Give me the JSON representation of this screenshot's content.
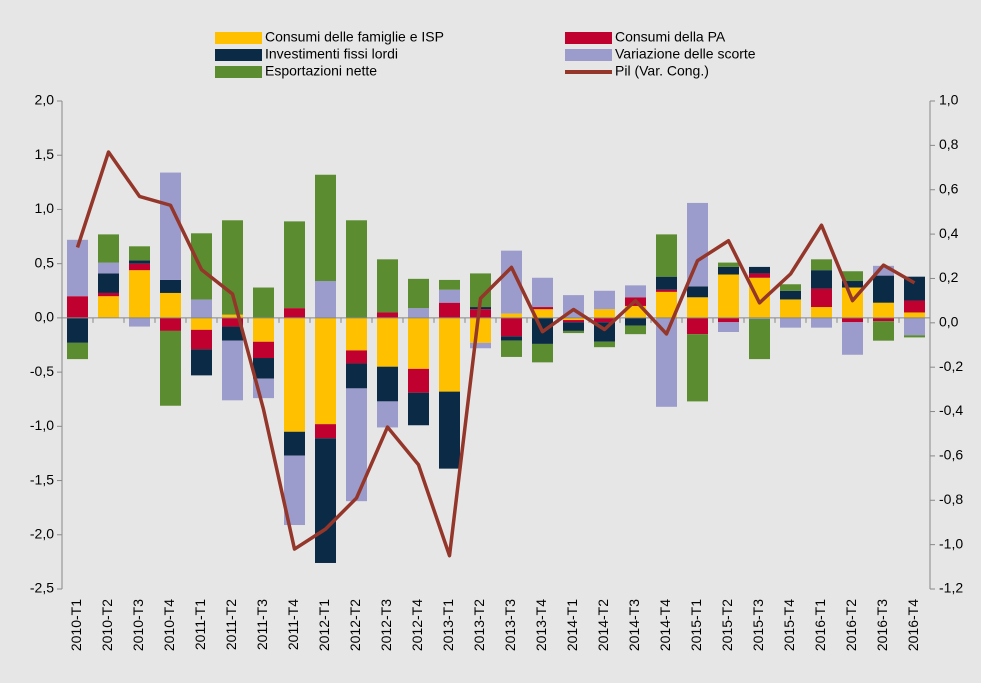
{
  "chart_data": {
    "type": "bar",
    "categories": [
      "2010-T1",
      "2010-T2",
      "2010-T3",
      "2010-T4",
      "2011-T1",
      "2011-T2",
      "2011-T3",
      "2011-T4",
      "2012-T1",
      "2012-T2",
      "2012-T3",
      "2012-T4",
      "2013-T1",
      "2013-T2",
      "2013-T3",
      "2013-T4",
      "2014-T1",
      "2014-T2",
      "2014-T3",
      "2014-T4",
      "2015-T1",
      "2015-T2",
      "2015-T3",
      "2015-T4",
      "2016-T1",
      "2016-T2",
      "2016-T3",
      "2016-T4"
    ],
    "series": [
      {
        "name": "Consumi delle famiglie e ISP",
        "color": "#ffc000",
        "values": [
          0,
          0.2,
          0.44,
          0.23,
          -0.11,
          0.03,
          -0.22,
          -1.05,
          -0.98,
          -0.3,
          -0.45,
          -0.47,
          -0.68,
          -0.23,
          0.04,
          0.08,
          -0.02,
          0.08,
          0.11,
          0.24,
          0.19,
          0.4,
          0.37,
          0.17,
          0.1,
          0.28,
          0.14,
          0.05
        ]
      },
      {
        "name": "Consumi della PA",
        "color": "#c0002f",
        "values": [
          0.2,
          0.03,
          0.06,
          -0.12,
          -0.18,
          -0.08,
          -0.15,
          0.09,
          -0.13,
          -0.12,
          0.05,
          -0.22,
          0.14,
          0.08,
          -0.17,
          0.02,
          -0.02,
          -0.04,
          0.08,
          0.02,
          -0.15,
          -0.04,
          0.04,
          0,
          0.17,
          -0.04,
          -0.03,
          0.11
        ]
      },
      {
        "name": "Investimenti fissi lordi",
        "color": "#0b2a45",
        "values": [
          -0.23,
          0.18,
          0.03,
          0.12,
          -0.24,
          -0.13,
          -0.19,
          -0.22,
          -1.15,
          -0.23,
          -0.32,
          -0.3,
          -0.71,
          0.02,
          -0.04,
          -0.24,
          -0.08,
          -0.18,
          -0.07,
          0.12,
          0.1,
          0.07,
          0.06,
          0.08,
          0.17,
          0.06,
          0.25,
          0.22
        ]
      },
      {
        "name": "Variazione delle scorte",
        "color": "#9b9bcc",
        "values": [
          0.52,
          0.1,
          -0.08,
          0.99,
          0.17,
          -0.55,
          -0.18,
          -0.64,
          0.34,
          -1.04,
          -0.24,
          0.09,
          0.12,
          -0.05,
          0.58,
          0.27,
          0.21,
          0.17,
          0.11,
          -0.82,
          0.77,
          -0.09,
          -0.01,
          -0.09,
          -0.09,
          -0.3,
          0.09,
          -0.16
        ]
      },
      {
        "name": "Esportazioni nette",
        "color": "#5b8c2f",
        "values": [
          -0.15,
          0.26,
          0.13,
          -0.69,
          0.61,
          0.87,
          0.28,
          0.8,
          0.98,
          0.9,
          0.49,
          0.27,
          0.09,
          0.31,
          -0.15,
          -0.17,
          -0.02,
          -0.05,
          -0.08,
          0.39,
          -0.62,
          0.04,
          -0.37,
          0.06,
          0.1,
          0.09,
          -0.18,
          -0.02
        ]
      },
      {
        "name": "Pil (Var. Cong.)",
        "color": "#94362a",
        "axis": "y2",
        "type": "line",
        "values": [
          0.34,
          0.77,
          0.57,
          0.53,
          0.24,
          0.13,
          -0.39,
          -1.02,
          -0.93,
          -0.79,
          -0.47,
          -0.64,
          -1.05,
          0.11,
          0.25,
          -0.04,
          0.06,
          -0.03,
          0.1,
          -0.05,
          0.28,
          0.37,
          0.09,
          0.22,
          0.44,
          0.1,
          0.26,
          0.18
        ]
      }
    ],
    "ylim": [
      -2.5,
      2.0
    ],
    "yticks": [
      {
        "value": 2.0,
        "label": "2,0"
      },
      {
        "value": 1.5,
        "label": "1,5"
      },
      {
        "value": 1.0,
        "label": "1,0"
      },
      {
        "value": 0.5,
        "label": "0,5"
      },
      {
        "value": 0,
        "label": "0,0"
      },
      {
        "value": -0.5,
        "label": "-0,5"
      },
      {
        "value": -1.0,
        "label": "-1,0"
      },
      {
        "value": -1.5,
        "label": "-1,5"
      },
      {
        "value": -2.0,
        "label": "-2,0"
      },
      {
        "value": -2.5,
        "label": "-2,5"
      }
    ],
    "y2lim": [
      -1.2,
      1.0
    ],
    "y2ticks": [
      {
        "value": 1.0,
        "label": "1,0"
      },
      {
        "value": 0.8,
        "label": "0,8"
      },
      {
        "value": 0.6,
        "label": "0,6"
      },
      {
        "value": 0.4,
        "label": "0,4"
      },
      {
        "value": 0.2,
        "label": "0,2"
      },
      {
        "value": 0,
        "label": "0,0"
      },
      {
        "value": -0.2,
        "label": "-0,2"
      },
      {
        "value": -0.4,
        "label": "-0,4"
      },
      {
        "value": -0.6,
        "label": "-0,6"
      },
      {
        "value": -0.8,
        "label": "-0,8"
      },
      {
        "value": -1.0,
        "label": "-1,0"
      },
      {
        "value": -1.2,
        "label": "-1,2"
      }
    ],
    "stacked": true
  }
}
